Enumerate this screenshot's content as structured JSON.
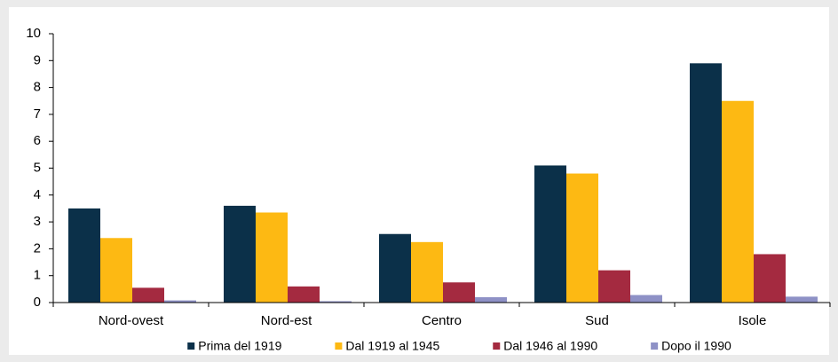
{
  "chart_data": {
    "type": "bar",
    "categories": [
      "Nord-ovest",
      "Nord-est",
      "Centro",
      "Sud",
      "Isole"
    ],
    "series": [
      {
        "name": "Prima del 1919",
        "color": "#0b3049",
        "values": [
          3.5,
          3.6,
          2.55,
          5.1,
          8.9
        ]
      },
      {
        "name": "Dal 1919 al 1945",
        "color": "#fdb913",
        "values": [
          2.4,
          3.35,
          2.25,
          4.8,
          7.5
        ]
      },
      {
        "name": "Dal 1946 al 1990",
        "color": "#a42a40",
        "values": [
          0.55,
          0.6,
          0.75,
          1.2,
          1.8
        ]
      },
      {
        "name": "Dopo il 1990",
        "color": "#8e91c6",
        "values": [
          0.08,
          0.05,
          0.2,
          0.28,
          0.22
        ]
      }
    ],
    "ylim": [
      0,
      10
    ],
    "yticks": [
      0,
      1,
      2,
      3,
      4,
      5,
      6,
      7,
      8,
      9,
      10
    ],
    "grid": false,
    "legend": "bottom"
  }
}
